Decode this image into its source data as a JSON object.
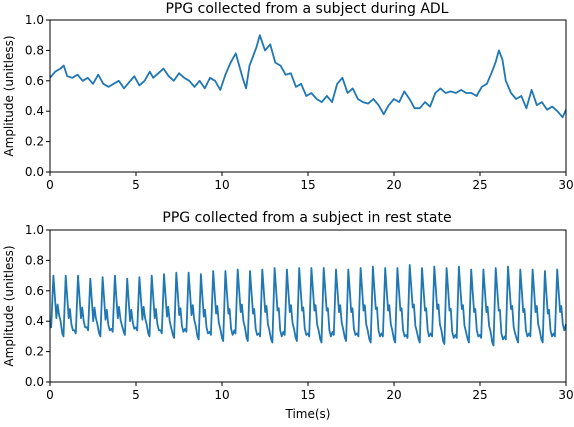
{
  "chart_data": [
    {
      "type": "line",
      "title": "PPG collected from a subject during ADL",
      "xlabel": "",
      "ylabel": "Amplitude (unitless)",
      "xlim": [
        0,
        30
      ],
      "ylim": [
        0,
        1.0
      ],
      "xticks": [
        "0",
        "5",
        "10",
        "15",
        "20",
        "25",
        "30"
      ],
      "yticks": [
        "0.0",
        "0.2",
        "0.4",
        "0.6",
        "0.8",
        "1.0"
      ],
      "grid": false,
      "color": "#1f77b4",
      "series": [
        {
          "x": [
            0,
            0.3,
            0.6,
            0.8,
            1.0,
            1.3,
            1.6,
            1.9,
            2.2,
            2.5,
            2.8,
            3.1,
            3.4,
            3.7,
            4.0,
            4.3,
            4.6,
            4.9,
            5.2,
            5.5,
            5.8,
            6.0,
            6.3,
            6.6,
            6.9,
            7.2,
            7.5,
            7.8,
            8.1,
            8.4,
            8.7,
            9.0,
            9.3,
            9.6,
            9.9,
            10.2,
            10.5,
            10.8,
            11.0,
            11.2,
            11.4,
            11.6,
            11.8,
            12.0,
            12.2,
            12.5,
            12.8,
            13.1,
            13.4,
            13.7,
            14.0,
            14.3,
            14.6,
            14.9,
            15.2,
            15.5,
            15.8,
            16.1,
            16.4,
            16.7,
            17.0,
            17.3,
            17.6,
            17.9,
            18.2,
            18.5,
            18.8,
            19.1,
            19.4,
            19.7,
            20.0,
            20.3,
            20.6,
            20.9,
            21.2,
            21.5,
            21.8,
            22.1,
            22.4,
            22.7,
            23.0,
            23.3,
            23.6,
            23.9,
            24.2,
            24.5,
            24.8,
            25.1,
            25.4,
            25.7,
            25.9,
            26.1,
            26.3,
            26.5,
            26.8,
            27.1,
            27.4,
            27.7,
            28.0,
            28.3,
            28.6,
            28.9,
            29.2,
            29.5,
            29.8,
            30.0
          ],
          "y": [
            0.62,
            0.66,
            0.68,
            0.7,
            0.63,
            0.62,
            0.64,
            0.6,
            0.62,
            0.58,
            0.64,
            0.58,
            0.56,
            0.58,
            0.6,
            0.55,
            0.59,
            0.63,
            0.57,
            0.6,
            0.66,
            0.62,
            0.65,
            0.68,
            0.63,
            0.6,
            0.65,
            0.62,
            0.6,
            0.56,
            0.6,
            0.55,
            0.62,
            0.6,
            0.54,
            0.64,
            0.72,
            0.78,
            0.7,
            0.62,
            0.55,
            0.7,
            0.76,
            0.82,
            0.9,
            0.8,
            0.84,
            0.72,
            0.7,
            0.64,
            0.65,
            0.56,
            0.58,
            0.5,
            0.52,
            0.48,
            0.46,
            0.5,
            0.46,
            0.58,
            0.62,
            0.52,
            0.55,
            0.48,
            0.46,
            0.45,
            0.48,
            0.44,
            0.38,
            0.44,
            0.48,
            0.46,
            0.53,
            0.48,
            0.42,
            0.42,
            0.46,
            0.43,
            0.52,
            0.55,
            0.52,
            0.53,
            0.52,
            0.54,
            0.52,
            0.52,
            0.5,
            0.56,
            0.58,
            0.66,
            0.72,
            0.8,
            0.74,
            0.6,
            0.52,
            0.48,
            0.5,
            0.42,
            0.54,
            0.44,
            0.46,
            0.41,
            0.43,
            0.4,
            0.36,
            0.41
          ]
        }
      ]
    },
    {
      "type": "line",
      "title": "PPG collected from a subject in rest state",
      "xlabel": "Time(s)",
      "ylabel": "Amplitude (unitless)",
      "xlim": [
        0,
        30
      ],
      "ylim": [
        0,
        1.0
      ],
      "xticks": [
        "0",
        "5",
        "10",
        "15",
        "20",
        "25",
        "30"
      ],
      "yticks": [
        "0.0",
        "0.2",
        "0.4",
        "0.6",
        "0.8",
        "1.0"
      ],
      "grid": false,
      "color": "#1f77b4",
      "beats": {
        "count": 42,
        "trough": [
          0.36,
          0.3,
          0.32,
          0.34,
          0.3,
          0.33,
          0.31,
          0.34,
          0.3,
          0.32,
          0.29,
          0.33,
          0.28,
          0.31,
          0.27,
          0.32,
          0.27,
          0.3,
          0.26,
          0.31,
          0.27,
          0.3,
          0.26,
          0.31,
          0.27,
          0.3,
          0.26,
          0.3,
          0.26,
          0.29,
          0.26,
          0.3,
          0.25,
          0.29,
          0.26,
          0.29,
          0.24,
          0.28,
          0.26,
          0.3,
          0.26,
          0.3
        ],
        "peak": [
          0.7,
          0.7,
          0.7,
          0.68,
          0.69,
          0.7,
          0.68,
          0.69,
          0.7,
          0.71,
          0.72,
          0.72,
          0.71,
          0.73,
          0.73,
          0.74,
          0.73,
          0.74,
          0.75,
          0.74,
          0.75,
          0.75,
          0.75,
          0.74,
          0.74,
          0.75,
          0.76,
          0.75,
          0.75,
          0.77,
          0.75,
          0.76,
          0.75,
          0.76,
          0.74,
          0.74,
          0.75,
          0.76,
          0.74,
          0.74,
          0.73,
          0.74
        ]
      }
    }
  ]
}
